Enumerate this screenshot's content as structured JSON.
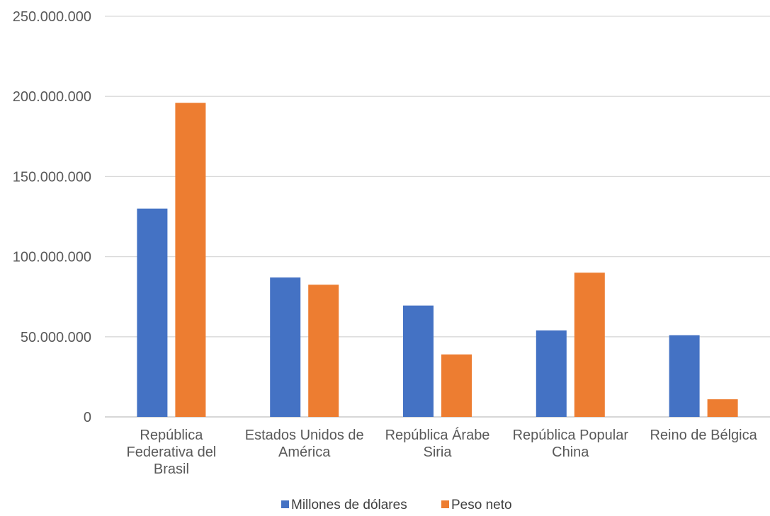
{
  "chart_data": {
    "type": "bar",
    "categories": [
      [
        "República",
        "Federativa del",
        "Brasil"
      ],
      [
        "Estados Unidos de",
        "América"
      ],
      [
        "República Árabe",
        "Siria"
      ],
      [
        "República Popular",
        "China"
      ],
      [
        "Reino de Bélgica"
      ]
    ],
    "series": [
      {
        "name": "Millones de dólares",
        "color": "#4472C4",
        "values": [
          130000000,
          87000000,
          69500000,
          54000000,
          51000000
        ]
      },
      {
        "name": "Peso neto",
        "color": "#ED7D31",
        "values": [
          196000000,
          82500000,
          39000000,
          90000000,
          11000000
        ]
      }
    ],
    "yticks": [
      "0",
      "50.000.000",
      "100.000.000",
      "150.000.000",
      "200.000.000",
      "250.000.000"
    ],
    "ylim": [
      0,
      250000000
    ],
    "grid": true,
    "legend_position": "bottom"
  }
}
